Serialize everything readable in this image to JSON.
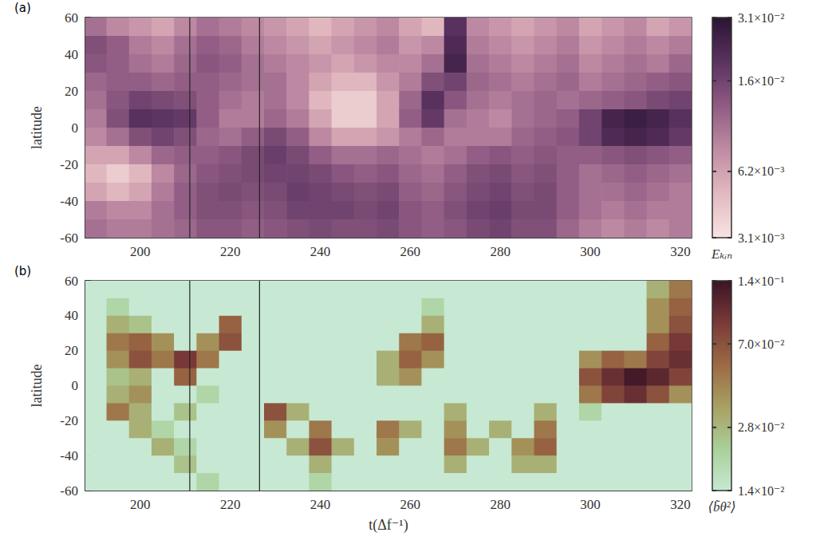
{
  "chart_data": [
    {
      "type": "heatmap",
      "title": "(a)",
      "y_label": "latitude",
      "x": [
        190,
        195,
        200,
        205,
        210,
        215,
        220,
        225,
        230,
        235,
        240,
        245,
        250,
        255,
        260,
        265,
        270,
        275,
        280,
        285,
        290,
        295,
        300,
        305,
        310,
        315,
        320
      ],
      "y": [
        55,
        45,
        35,
        25,
        15,
        5,
        -5,
        -15,
        -25,
        -35,
        -45,
        -55
      ],
      "values": [
        [
          0.01,
          0.008,
          0.007,
          0.006,
          0.008,
          0.01,
          0.009,
          0.008,
          0.007,
          0.006,
          0.005,
          0.006,
          0.007,
          0.008,
          0.006,
          0.005,
          0.02,
          0.008,
          0.007,
          0.006,
          0.007,
          0.008,
          0.006,
          0.007,
          0.008,
          0.006,
          0.007
        ],
        [
          0.014,
          0.012,
          0.009,
          0.008,
          0.01,
          0.012,
          0.011,
          0.009,
          0.008,
          0.007,
          0.006,
          0.007,
          0.008,
          0.009,
          0.007,
          0.008,
          0.022,
          0.009,
          0.008,
          0.007,
          0.008,
          0.009,
          0.007,
          0.008,
          0.009,
          0.008,
          0.009
        ],
        [
          0.013,
          0.012,
          0.01,
          0.009,
          0.011,
          0.013,
          0.012,
          0.01,
          0.009,
          0.008,
          0.007,
          0.006,
          0.007,
          0.008,
          0.008,
          0.01,
          0.024,
          0.01,
          0.009,
          0.008,
          0.009,
          0.01,
          0.008,
          0.009,
          0.01,
          0.009,
          0.011
        ],
        [
          0.011,
          0.012,
          0.012,
          0.011,
          0.012,
          0.012,
          0.011,
          0.01,
          0.01,
          0.008,
          0.006,
          0.005,
          0.005,
          0.007,
          0.009,
          0.014,
          0.016,
          0.011,
          0.01,
          0.009,
          0.01,
          0.011,
          0.009,
          0.01,
          0.011,
          0.012,
          0.013
        ],
        [
          0.01,
          0.013,
          0.016,
          0.015,
          0.014,
          0.012,
          0.01,
          0.009,
          0.01,
          0.008,
          0.005,
          0.004,
          0.004,
          0.006,
          0.011,
          0.02,
          0.013,
          0.01,
          0.009,
          0.01,
          0.011,
          0.01,
          0.011,
          0.012,
          0.013,
          0.015,
          0.016
        ],
        [
          0.009,
          0.014,
          0.02,
          0.019,
          0.018,
          0.012,
          0.009,
          0.009,
          0.011,
          0.009,
          0.006,
          0.004,
          0.004,
          0.006,
          0.012,
          0.018,
          0.01,
          0.009,
          0.008,
          0.01,
          0.011,
          0.012,
          0.016,
          0.024,
          0.026,
          0.024,
          0.02
        ],
        [
          0.008,
          0.01,
          0.014,
          0.016,
          0.014,
          0.011,
          0.01,
          0.012,
          0.015,
          0.012,
          0.008,
          0.006,
          0.006,
          0.007,
          0.009,
          0.011,
          0.009,
          0.009,
          0.009,
          0.011,
          0.012,
          0.013,
          0.016,
          0.022,
          0.024,
          0.022,
          0.018
        ],
        [
          0.006,
          0.006,
          0.008,
          0.011,
          0.012,
          0.012,
          0.013,
          0.015,
          0.017,
          0.015,
          0.012,
          0.01,
          0.01,
          0.011,
          0.01,
          0.009,
          0.01,
          0.012,
          0.013,
          0.012,
          0.013,
          0.012,
          0.012,
          0.013,
          0.014,
          0.013,
          0.012
        ],
        [
          0.005,
          0.004,
          0.005,
          0.008,
          0.011,
          0.013,
          0.014,
          0.015,
          0.016,
          0.016,
          0.015,
          0.013,
          0.012,
          0.013,
          0.011,
          0.01,
          0.012,
          0.014,
          0.015,
          0.013,
          0.014,
          0.012,
          0.01,
          0.011,
          0.012,
          0.011,
          0.01
        ],
        [
          0.006,
          0.005,
          0.006,
          0.009,
          0.012,
          0.014,
          0.015,
          0.014,
          0.015,
          0.017,
          0.016,
          0.015,
          0.014,
          0.015,
          0.012,
          0.011,
          0.013,
          0.015,
          0.016,
          0.014,
          0.015,
          0.012,
          0.01,
          0.01,
          0.011,
          0.01,
          0.009
        ],
        [
          0.009,
          0.008,
          0.008,
          0.01,
          0.012,
          0.014,
          0.014,
          0.013,
          0.014,
          0.016,
          0.016,
          0.016,
          0.015,
          0.016,
          0.013,
          0.012,
          0.014,
          0.016,
          0.017,
          0.015,
          0.015,
          0.012,
          0.01,
          0.009,
          0.01,
          0.009,
          0.009
        ],
        [
          0.01,
          0.009,
          0.009,
          0.01,
          0.011,
          0.013,
          0.013,
          0.012,
          0.013,
          0.014,
          0.015,
          0.014,
          0.014,
          0.015,
          0.013,
          0.012,
          0.013,
          0.015,
          0.016,
          0.014,
          0.014,
          0.011,
          0.009,
          0.008,
          0.009,
          0.008,
          0.009
        ]
      ],
      "xlim": [
        187.8,
        322.5
      ],
      "xticks": [
        200,
        220,
        240,
        260,
        280,
        300,
        320
      ],
      "ylim": [
        -60,
        60
      ],
      "yticks": [
        -60,
        -40,
        -20,
        0,
        20,
        40,
        60
      ],
      "vlines": [
        211,
        226.5
      ],
      "colorbar": {
        "label": "Eₖᵢₙ",
        "log": true,
        "range": [
          0.0031,
          0.031
        ],
        "ticks": [
          {
            "value": 0.0031,
            "label": "3.1×10⁻³"
          },
          {
            "value": 0.0062,
            "label": "6.2×10⁻³"
          },
          {
            "value": 0.016,
            "label": "1.6×10⁻²"
          },
          {
            "value": 0.031,
            "label": "3.1×10⁻²"
          }
        ]
      }
    },
    {
      "type": "heatmap",
      "title": "(b)",
      "x_label": "t(Δf⁻¹)",
      "y_label": "latitude",
      "x": [
        190,
        195,
        200,
        205,
        210,
        215,
        220,
        225,
        230,
        235,
        240,
        245,
        250,
        255,
        260,
        265,
        270,
        275,
        280,
        285,
        290,
        295,
        300,
        305,
        310,
        315,
        320
      ],
      "y": [
        55,
        45,
        35,
        25,
        15,
        5,
        -5,
        -15,
        -25,
        -35,
        -45,
        -55
      ],
      "values": [
        [
          0.014,
          0.014,
          0.014,
          0.014,
          0.014,
          0.014,
          0.014,
          0.014,
          0.014,
          0.014,
          0.014,
          0.014,
          0.014,
          0.014,
          0.014,
          0.014,
          0.014,
          0.014,
          0.014,
          0.014,
          0.014,
          0.014,
          0.014,
          0.014,
          0.014,
          0.03,
          0.05
        ],
        [
          0.014,
          0.02,
          0.014,
          0.014,
          0.014,
          0.014,
          0.014,
          0.014,
          0.014,
          0.014,
          0.014,
          0.014,
          0.014,
          0.014,
          0.014,
          0.02,
          0.014,
          0.014,
          0.014,
          0.014,
          0.014,
          0.014,
          0.014,
          0.014,
          0.014,
          0.04,
          0.06
        ],
        [
          0.014,
          0.03,
          0.025,
          0.014,
          0.014,
          0.014,
          0.06,
          0.014,
          0.014,
          0.014,
          0.014,
          0.014,
          0.014,
          0.014,
          0.014,
          0.03,
          0.014,
          0.014,
          0.014,
          0.014,
          0.014,
          0.014,
          0.014,
          0.014,
          0.014,
          0.04,
          0.07
        ],
        [
          0.014,
          0.05,
          0.06,
          0.04,
          0.014,
          0.04,
          0.07,
          0.014,
          0.014,
          0.014,
          0.014,
          0.014,
          0.014,
          0.014,
          0.05,
          0.06,
          0.014,
          0.014,
          0.014,
          0.014,
          0.014,
          0.014,
          0.014,
          0.014,
          0.014,
          0.06,
          0.09
        ],
        [
          0.014,
          0.04,
          0.07,
          0.05,
          0.09,
          0.05,
          0.014,
          0.014,
          0.014,
          0.014,
          0.014,
          0.014,
          0.014,
          0.03,
          0.06,
          0.04,
          0.014,
          0.014,
          0.014,
          0.014,
          0.014,
          0.014,
          0.04,
          0.06,
          0.05,
          0.08,
          0.1
        ],
        [
          0.014,
          0.025,
          0.03,
          0.014,
          0.06,
          0.014,
          0.014,
          0.014,
          0.014,
          0.014,
          0.014,
          0.014,
          0.014,
          0.03,
          0.04,
          0.014,
          0.014,
          0.014,
          0.014,
          0.014,
          0.014,
          0.014,
          0.07,
          0.1,
          0.13,
          0.11,
          0.08
        ],
        [
          0.014,
          0.03,
          0.04,
          0.014,
          0.014,
          0.02,
          0.014,
          0.014,
          0.014,
          0.014,
          0.014,
          0.014,
          0.014,
          0.014,
          0.014,
          0.014,
          0.014,
          0.014,
          0.014,
          0.014,
          0.014,
          0.014,
          0.05,
          0.08,
          0.1,
          0.07,
          0.04
        ],
        [
          0.014,
          0.05,
          0.03,
          0.014,
          0.025,
          0.014,
          0.014,
          0.014,
          0.07,
          0.03,
          0.014,
          0.014,
          0.014,
          0.014,
          0.014,
          0.014,
          0.03,
          0.014,
          0.014,
          0.014,
          0.03,
          0.014,
          0.02,
          0.014,
          0.014,
          0.014,
          0.014
        ],
        [
          0.014,
          0.014,
          0.03,
          0.02,
          0.014,
          0.014,
          0.014,
          0.014,
          0.04,
          0.014,
          0.05,
          0.014,
          0.014,
          0.05,
          0.03,
          0.014,
          0.04,
          0.014,
          0.03,
          0.014,
          0.05,
          0.014,
          0.014,
          0.014,
          0.014,
          0.014,
          0.014
        ],
        [
          0.014,
          0.014,
          0.014,
          0.03,
          0.02,
          0.014,
          0.014,
          0.014,
          0.014,
          0.03,
          0.07,
          0.03,
          0.014,
          0.04,
          0.014,
          0.014,
          0.05,
          0.03,
          0.014,
          0.04,
          0.06,
          0.014,
          0.014,
          0.014,
          0.014,
          0.014,
          0.014
        ],
        [
          0.014,
          0.014,
          0.014,
          0.014,
          0.025,
          0.014,
          0.014,
          0.014,
          0.014,
          0.014,
          0.03,
          0.014,
          0.014,
          0.014,
          0.014,
          0.014,
          0.03,
          0.014,
          0.014,
          0.03,
          0.03,
          0.014,
          0.014,
          0.014,
          0.014,
          0.014,
          0.014
        ],
        [
          0.014,
          0.014,
          0.014,
          0.014,
          0.014,
          0.02,
          0.014,
          0.014,
          0.014,
          0.014,
          0.02,
          0.014,
          0.014,
          0.014,
          0.014,
          0.014,
          0.014,
          0.014,
          0.014,
          0.014,
          0.014,
          0.014,
          0.014,
          0.014,
          0.014,
          0.014,
          0.014
        ]
      ],
      "xlim": [
        187.8,
        322.5
      ],
      "xticks": [
        200,
        220,
        240,
        260,
        280,
        300,
        320
      ],
      "ylim": [
        -60,
        60
      ],
      "yticks": [
        -60,
        -40,
        -20,
        0,
        20,
        40,
        60
      ],
      "vlines": [
        211,
        226.5
      ],
      "colorbar": {
        "label": "⟨b̃θ²⟩",
        "log": true,
        "range": [
          0.014,
          0.14
        ],
        "ticks": [
          {
            "value": 0.014,
            "label": "1.4×10⁻²"
          },
          {
            "value": 0.028,
            "label": "2.8×10⁻²"
          },
          {
            "value": 0.07,
            "label": "7.0×10⁻²"
          },
          {
            "value": 0.14,
            "label": "1.4×10⁻¹"
          }
        ]
      }
    }
  ]
}
